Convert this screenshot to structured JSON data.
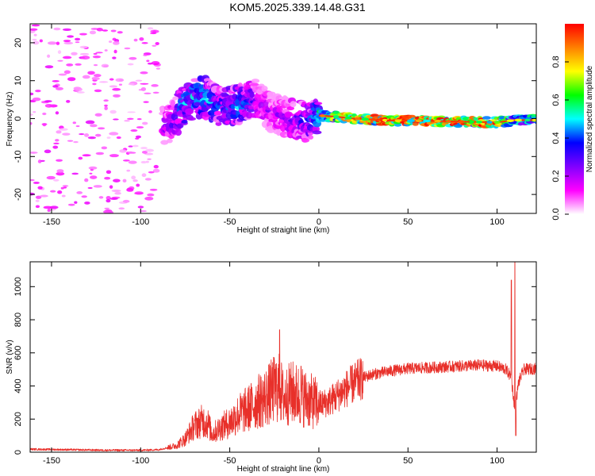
{
  "title": "KOM5.2025.339.14.48.G31",
  "chart_data": [
    {
      "type": "heatmap",
      "title": "KOM5.2025.339.14.48.G31",
      "xlabel": "Height of straight line (km)",
      "ylabel": "Frequency (Hz)",
      "xlim": [
        -162,
        122
      ],
      "ylim": [
        -25,
        25
      ],
      "xticks": [
        -150,
        -100,
        -50,
        0,
        50,
        100
      ],
      "yticks": [
        -20,
        -10,
        0,
        10,
        20
      ],
      "colorbar": {
        "label": "Normalized spectral amplitude",
        "range": [
          0,
          1
        ],
        "ticks": [
          "0.0",
          "0.2",
          "0.4",
          "0.6",
          "0.8"
        ],
        "colors": [
          "#ffffff",
          "#ff00ff",
          "#8000ff",
          "#0000ff",
          "#00ffff",
          "#00ff00",
          "#ffff00",
          "#ff8000",
          "#ff0000"
        ]
      },
      "ridge": {
        "x": [
          -85,
          -75,
          -65,
          -55,
          -45,
          -35,
          -25,
          -15,
          -5,
          0,
          10,
          20,
          40,
          60,
          80,
          100,
          110,
          122
        ],
        "freq": [
          -2,
          4,
          6,
          3,
          4,
          5,
          1,
          0,
          -1,
          0.8,
          0.5,
          0,
          -0.5,
          -0.6,
          -0.8,
          -1,
          -0.4,
          -0.4
        ],
        "amplitude": [
          0.25,
          0.45,
          0.5,
          0.35,
          0.45,
          0.3,
          0.2,
          0.3,
          0.35,
          0.55,
          0.7,
          0.85,
          0.95,
          0.95,
          0.9,
          0.9,
          0.45,
          0.6
        ]
      }
    },
    {
      "type": "line",
      "xlabel": "Height of straight line (km)",
      "ylabel": "SNR (v/v)",
      "xlim": [
        -162,
        122
      ],
      "ylim": [
        0,
        1150
      ],
      "xticks": [
        -150,
        -100,
        -50,
        0,
        50,
        100
      ],
      "yticks": [
        0,
        200,
        400,
        600,
        800,
        1000
      ],
      "series": [
        {
          "name": "SNR",
          "color": "#e8302a",
          "x": [
            -162,
            -140,
            -120,
            -100,
            -90,
            -80,
            -75,
            -70,
            -65,
            -62,
            -60,
            -55,
            -50,
            -45,
            -40,
            -35,
            -30,
            -25,
            -22,
            -20,
            -15,
            -10,
            -5,
            0,
            5,
            10,
            15,
            20,
            25,
            30,
            40,
            50,
            60,
            70,
            80,
            90,
            100,
            105,
            108,
            110,
            112,
            115,
            122
          ],
          "y": [
            18,
            15,
            12,
            12,
            15,
            40,
            80,
            160,
            190,
            170,
            110,
            150,
            180,
            230,
            260,
            300,
            330,
            380,
            390,
            330,
            360,
            340,
            310,
            290,
            300,
            340,
            380,
            420,
            450,
            470,
            490,
            505,
            510,
            515,
            520,
            525,
            520,
            500,
            450,
            250,
            420,
            500,
            505
          ],
          "spikes": [
            {
              "x": -22,
              "y": 740
            },
            {
              "x": -10,
              "y": 520
            },
            {
              "x": 108,
              "y": 1040
            },
            {
              "x": 110,
              "y": 1150
            },
            {
              "x": 110.5,
              "y": 100
            }
          ]
        }
      ]
    }
  ]
}
